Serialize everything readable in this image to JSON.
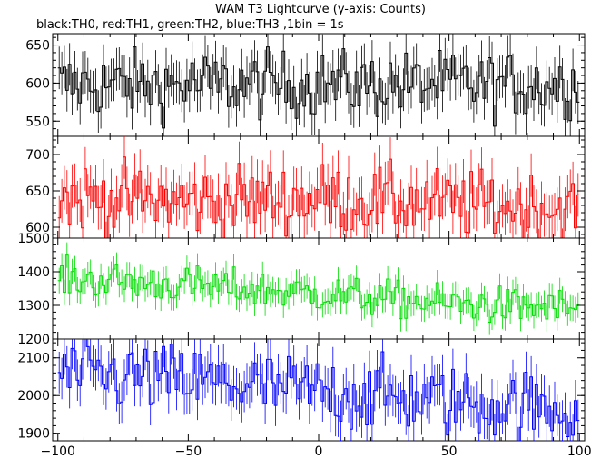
{
  "figure": {
    "title": "WAM T3 Lightcurve (y-axis: Counts)",
    "subtitle": "black:TH0, red:TH1, green:TH2, blue:TH3 ,1bin = 1s"
  },
  "chart_data": {
    "type": "line",
    "x_start": -100,
    "x_end": 100,
    "bin_width": 1,
    "xlim": [
      -102,
      102
    ],
    "x_ticks": [
      -100,
      -50,
      0,
      50,
      100
    ],
    "x_tick_labels": [
      "−100",
      "−50",
      "0",
      "50",
      "100"
    ],
    "grid": false,
    "panels": [
      {
        "name": "TH0",
        "color": "#000000",
        "ylim": [
          530,
          665
        ],
        "yticks": [
          550,
          600,
          650
        ],
        "level_points": [
          [
            -100,
            598
          ],
          [
            100,
            598
          ]
        ],
        "noise_amplitude": 22,
        "error_bar": 28
      },
      {
        "name": "TH1",
        "color": "#ff0000",
        "ylim": [
          585,
          725
        ],
        "yticks": [
          600,
          650,
          700
        ],
        "level_points": [
          [
            -100,
            642
          ],
          [
            -50,
            635
          ],
          [
            0,
            640
          ],
          [
            50,
            632
          ],
          [
            100,
            625
          ]
        ],
        "noise_amplitude": 24,
        "error_bar": 30
      },
      {
        "name": "TH2",
        "color": "#00dd00",
        "ylim": [
          1200,
          1500
        ],
        "yticks": [
          1200,
          1300,
          1400,
          1500
        ],
        "level_points": [
          [
            -100,
            1380
          ],
          [
            -50,
            1360
          ],
          [
            0,
            1335
          ],
          [
            50,
            1305
          ],
          [
            100,
            1290
          ]
        ],
        "noise_amplitude": 28,
        "error_bar": 38
      },
      {
        "name": "TH3",
        "color": "#0000ff",
        "ylim": [
          1880,
          2150
        ],
        "yticks": [
          1900,
          2000,
          2100
        ],
        "level_points": [
          [
            -100,
            2060
          ],
          [
            -50,
            2040
          ],
          [
            0,
            2010
          ],
          [
            50,
            1985
          ],
          [
            100,
            1960
          ]
        ],
        "noise_amplitude": 48,
        "error_bar": 55
      }
    ]
  }
}
